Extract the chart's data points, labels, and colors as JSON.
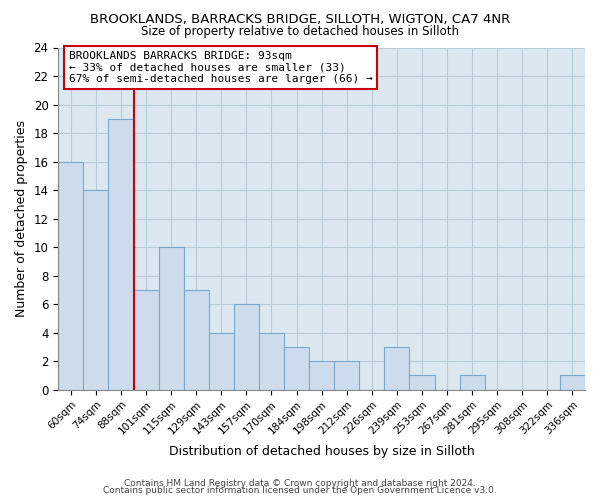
{
  "title": "BROOKLANDS, BARRACKS BRIDGE, SILLOTH, WIGTON, CA7 4NR",
  "subtitle": "Size of property relative to detached houses in Silloth",
  "xlabel": "Distribution of detached houses by size in Silloth",
  "ylabel": "Number of detached properties",
  "bar_color": "#ccdcec",
  "bar_edge_color": "#7aa8cc",
  "categories": [
    "60sqm",
    "74sqm",
    "88sqm",
    "101sqm",
    "115sqm",
    "129sqm",
    "143sqm",
    "157sqm",
    "170sqm",
    "184sqm",
    "198sqm",
    "212sqm",
    "226sqm",
    "239sqm",
    "253sqm",
    "267sqm",
    "281sqm",
    "295sqm",
    "308sqm",
    "322sqm",
    "336sqm"
  ],
  "values": [
    16,
    14,
    19,
    7,
    10,
    7,
    4,
    6,
    4,
    3,
    2,
    2,
    0,
    3,
    1,
    0,
    1,
    0,
    0,
    0,
    1
  ],
  "ylim": [
    0,
    24
  ],
  "yticks": [
    0,
    2,
    4,
    6,
    8,
    10,
    12,
    14,
    16,
    18,
    20,
    22,
    24
  ],
  "vline_color": "#cc0000",
  "vline_index": 2,
  "annotation_text": "BROOKLANDS BARRACKS BRIDGE: 93sqm\n← 33% of detached houses are smaller (33)\n67% of semi-detached houses are larger (66) →",
  "footer_line1": "Contains HM Land Registry data © Crown copyright and database right 2024.",
  "footer_line2": "Contains public sector information licensed under the Open Government Licence v3.0.",
  "background_color": "#ffffff",
  "plot_bg_color": "#dce8f0",
  "grid_color": "#b8ccd8"
}
